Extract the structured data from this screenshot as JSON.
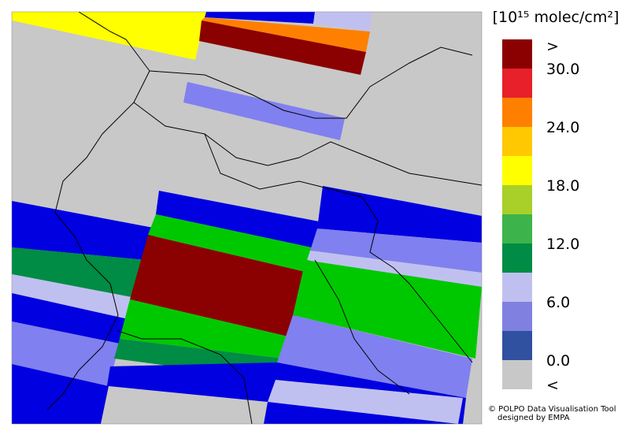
{
  "legend": {
    "title": "[10¹⁵ molec/cm²]",
    "colors": [
      "#8b0000",
      "#e8202a",
      "#ff8000",
      "#ffc800",
      "#ffff00",
      "#a8d028",
      "#3cb44b",
      "#008c44",
      "#c0c0f0",
      "#8080e0",
      "#3050a0",
      "#c8c8c8"
    ],
    "labels": [
      ">",
      "30.0",
      "24.0",
      "18.0",
      "12.0",
      "6.0",
      "0.0",
      "<"
    ]
  },
  "credit": {
    "line1": "© POLPO Data Visualisation Tool",
    "line2": "designed by EMPA"
  }
}
